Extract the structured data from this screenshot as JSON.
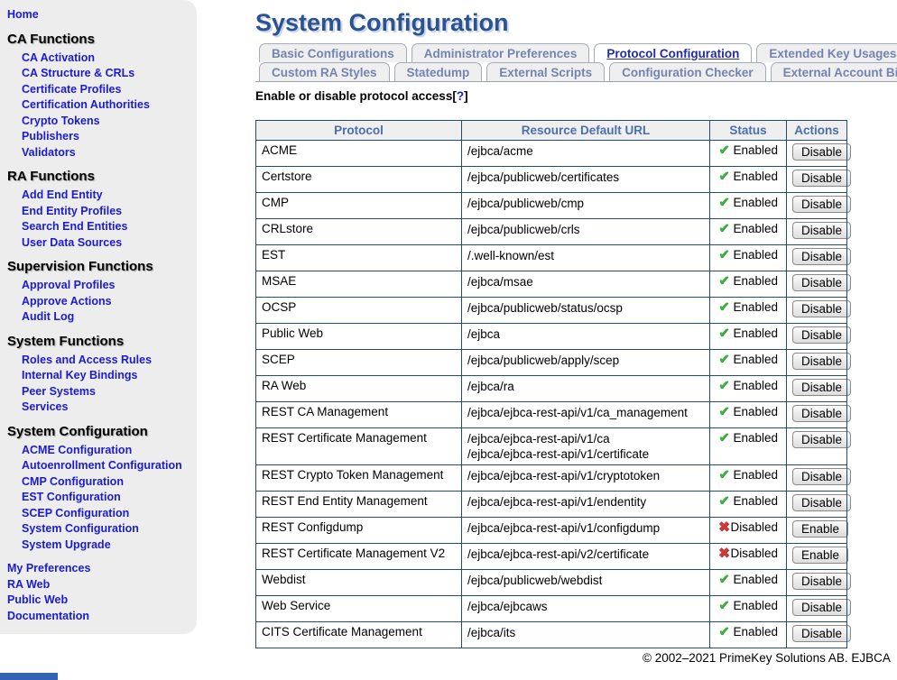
{
  "page": {
    "title": "System Configuration",
    "footer": "© 2002–2021 PrimeKey Solutions AB. EJBCA"
  },
  "colors": {
    "accent_navy": "#2c5290",
    "link_blue": "#1b1bd1",
    "table_border": "#254a73",
    "header_text": "#4a6eb0",
    "enabled_green": "#3db53d",
    "disabled_red": "#cc3a3a",
    "sidebar_bg": "#ededed"
  },
  "sidebar": {
    "top_links": [
      "Home"
    ],
    "sections": [
      {
        "title": "CA Functions",
        "links": [
          "CA Activation",
          "CA Structure & CRLs",
          "Certificate Profiles",
          "Certification Authorities",
          "Crypto Tokens",
          "Publishers",
          "Validators"
        ]
      },
      {
        "title": "RA Functions",
        "links": [
          "Add End Entity",
          "End Entity Profiles",
          "Search End Entities",
          "User Data Sources"
        ]
      },
      {
        "title": "Supervision Functions",
        "links": [
          "Approval Profiles",
          "Approve Actions",
          "Audit Log"
        ]
      },
      {
        "title": "System Functions",
        "links": [
          "Roles and Access Rules",
          "Internal Key Bindings",
          "Peer Systems",
          "Services"
        ]
      },
      {
        "title": "System Configuration",
        "links": [
          "ACME Configuration",
          "Autoenrollment Configuration",
          "CMP Configuration",
          "EST Configuration",
          "SCEP Configuration",
          "System Configuration",
          "System Upgrade"
        ]
      }
    ],
    "bottom_links": [
      "My Preferences",
      "RA Web",
      "Public Web",
      "Documentation"
    ]
  },
  "tabs": {
    "row1": [
      {
        "label": "Basic Configurations",
        "active": false
      },
      {
        "label": "Administrator Preferences",
        "active": false
      },
      {
        "label": "Protocol Configuration",
        "active": true
      },
      {
        "label": "Extended Key Usages",
        "active": false
      }
    ],
    "row2": [
      {
        "label": "Custom RA Styles",
        "active": false
      },
      {
        "label": "Statedump",
        "active": false
      },
      {
        "label": "External Scripts",
        "active": false
      },
      {
        "label": "Configuration Checker",
        "active": false
      },
      {
        "label": "External Account Bindings",
        "active": false
      }
    ]
  },
  "subtitle": {
    "text": "Enable or disable protocol access",
    "bracket_open": "[",
    "help_link": "?",
    "bracket_close": "]"
  },
  "icons": {
    "enabled": "✔",
    "disabled": "✖"
  },
  "protocol_table": {
    "columns": [
      "Protocol",
      "Resource Default URL",
      "Status",
      "Actions"
    ],
    "status_labels": {
      "enabled": "Enabled",
      "disabled": "Disabled"
    },
    "action_labels": {
      "enabled": "Disable",
      "disabled": "Enable"
    },
    "rows": [
      {
        "protocol": "ACME",
        "urls": [
          "/ejbca/acme"
        ],
        "enabled": true
      },
      {
        "protocol": "Certstore",
        "urls": [
          "/ejbca/publicweb/certificates"
        ],
        "enabled": true
      },
      {
        "protocol": "CMP",
        "urls": [
          "/ejbca/publicweb/cmp"
        ],
        "enabled": true
      },
      {
        "protocol": "CRLstore",
        "urls": [
          "/ejbca/publicweb/crls"
        ],
        "enabled": true
      },
      {
        "protocol": "EST",
        "urls": [
          "/.well-known/est"
        ],
        "enabled": true
      },
      {
        "protocol": "MSAE",
        "urls": [
          "/ejbca/msae"
        ],
        "enabled": true
      },
      {
        "protocol": "OCSP",
        "urls": [
          "/ejbca/publicweb/status/ocsp"
        ],
        "enabled": true
      },
      {
        "protocol": "Public Web",
        "urls": [
          "/ejbca"
        ],
        "enabled": true
      },
      {
        "protocol": "SCEP",
        "urls": [
          "/ejbca/publicweb/apply/scep"
        ],
        "enabled": true
      },
      {
        "protocol": "RA Web",
        "urls": [
          "/ejbca/ra"
        ],
        "enabled": true
      },
      {
        "protocol": "REST CA Management",
        "urls": [
          "/ejbca/ejbca-rest-api/v1/ca_management"
        ],
        "enabled": true
      },
      {
        "protocol": "REST Certificate Management",
        "urls": [
          "/ejbca/ejbca-rest-api/v1/ca",
          "/ejbca/ejbca-rest-api/v1/certificate"
        ],
        "enabled": true
      },
      {
        "protocol": "REST Crypto Token Management",
        "urls": [
          "/ejbca/ejbca-rest-api/v1/cryptotoken"
        ],
        "enabled": true
      },
      {
        "protocol": "REST End Entity Management",
        "urls": [
          "/ejbca/ejbca-rest-api/v1/endentity"
        ],
        "enabled": true
      },
      {
        "protocol": "REST Configdump",
        "urls": [
          "/ejbca/ejbca-rest-api/v1/configdump"
        ],
        "enabled": false
      },
      {
        "protocol": "REST Certificate Management V2",
        "urls": [
          "/ejbca/ejbca-rest-api/v2/certificate"
        ],
        "enabled": false
      },
      {
        "protocol": "Webdist",
        "urls": [
          "/ejbca/publicweb/webdist"
        ],
        "enabled": true
      },
      {
        "protocol": "Web Service",
        "urls": [
          "/ejbca/ejbcaws"
        ],
        "enabled": true
      },
      {
        "protocol": "CITS Certificate Management",
        "urls": [
          "/ejbca/its"
        ],
        "enabled": true
      }
    ]
  }
}
